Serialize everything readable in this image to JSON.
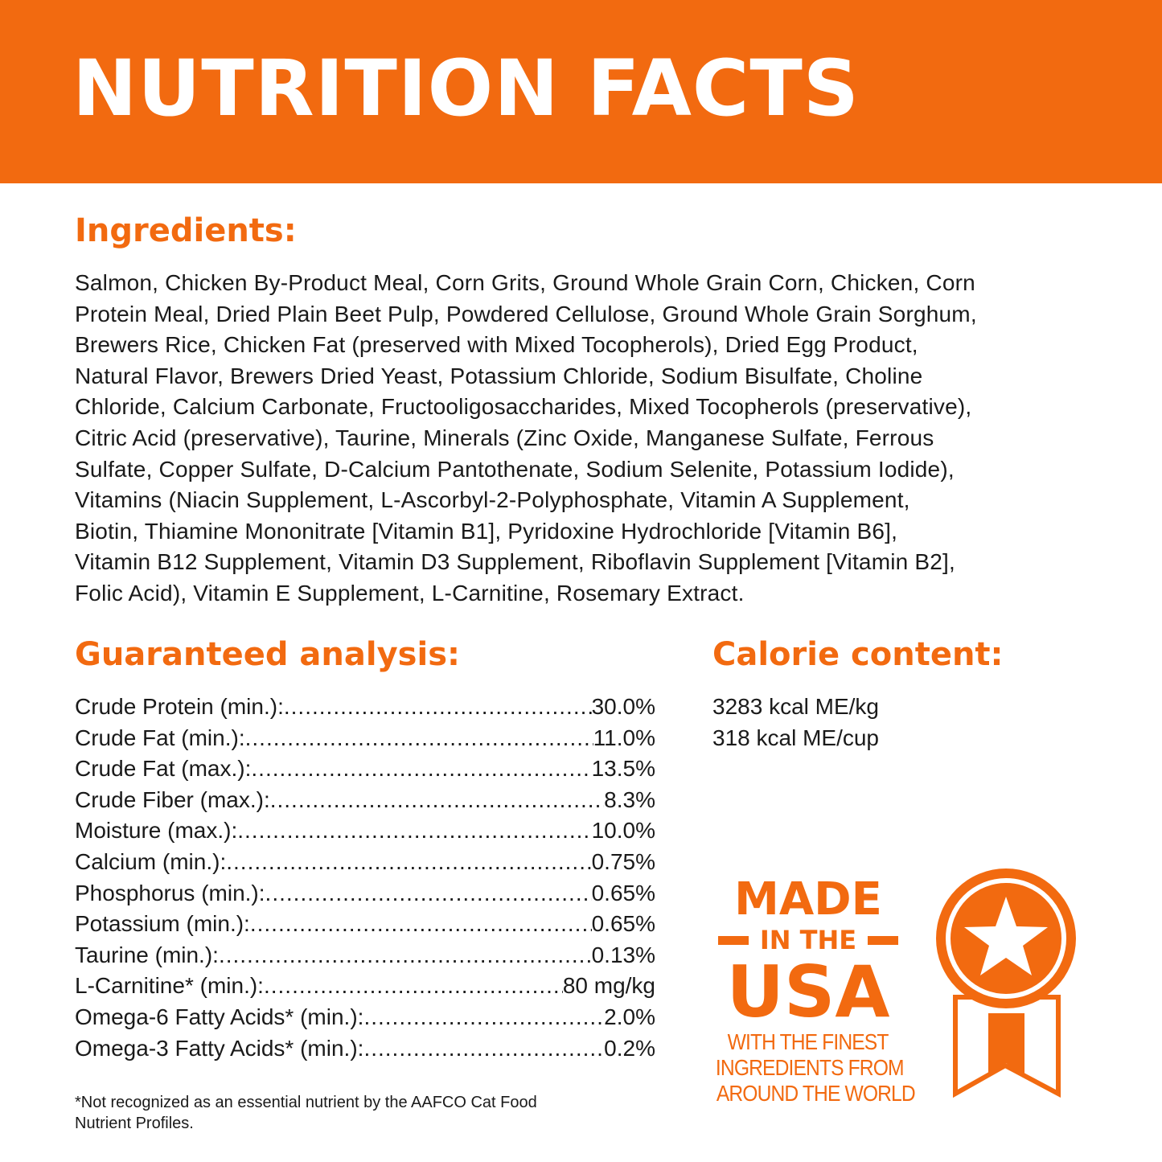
{
  "header": {
    "title": "NUTRITION FACTS",
    "color": "#f26a10"
  },
  "ingredients": {
    "heading": "Ingredients:",
    "lines": [
      "Salmon, Chicken By-Product Meal, Corn Grits, Ground Whole Grain Corn, Chicken, Corn",
      "Protein Meal, Dried Plain Beet Pulp, Powdered Cellulose, Ground Whole Grain Sorghum,",
      "Brewers Rice, Chicken Fat (preserved with Mixed Tocopherols), Dried Egg Product,",
      "Natural Flavor, Brewers Dried Yeast, Potassium Chloride, Sodium Bisulfate, Choline",
      "Chloride, Calcium Carbonate, Fructooligosaccharides, Mixed Tocopherols (preservative),",
      "Citric Acid (preservative), Taurine, Minerals (Zinc Oxide, Manganese Sulfate, Ferrous",
      "Sulfate, Copper Sulfate, D-Calcium Pantothenate, Sodium Selenite, Potassium Iodide),",
      "Vitamins (Niacin Supplement, L-Ascorbyl-2-Polyphosphate, Vitamin A Supplement,",
      "Biotin, Thiamine Mononitrate [Vitamin B1], Pyridoxine Hydrochloride [Vitamin B6],",
      "Vitamin B12 Supplement, Vitamin D3 Supplement, Riboflavin Supplement [Vitamin B2],",
      "Folic Acid), Vitamin E Supplement, L-Carnitine, Rosemary Extract."
    ]
  },
  "analysis": {
    "heading": "Guaranteed analysis:",
    "rows": [
      {
        "label": "Crude Protein (min.):",
        "value": "30.0%"
      },
      {
        "label": "Crude Fat (min.):",
        "value": "11.0%"
      },
      {
        "label": "Crude Fat (max.):",
        "value": "13.5%"
      },
      {
        "label": "Crude Fiber (max.):",
        "value": " 8.3%"
      },
      {
        "label": "Moisture (max.):",
        "value": "10.0%"
      },
      {
        "label": "Calcium (min.):",
        "value": "0.75%"
      },
      {
        "label": "Phosphorus (min.):",
        "value": "0.65%"
      },
      {
        "label": "Potassium (min.):",
        "value": "0.65%"
      },
      {
        "label": "Taurine (min.):",
        "value": "0.13%"
      },
      {
        "label": "L-Carnitine* (min.):",
        "value": "80 mg/kg"
      },
      {
        "label": "Omega-6 Fatty Acids* (min.):",
        "value": "2.0%"
      },
      {
        "label": "Omega-3 Fatty Acids* (min.):",
        "value": "0.2%"
      }
    ]
  },
  "calorie": {
    "heading": "Calorie content:",
    "lines": [
      "3283 kcal ME/kg",
      "318 kcal ME/cup"
    ]
  },
  "footnote": {
    "lines": [
      "*Not recognized as an essential nutrient by the AAFCO Cat Food",
      "Nutrient Profiles."
    ]
  },
  "badge": {
    "line1": "MADE",
    "line2": "IN THE",
    "line3": "USA",
    "sub": [
      "WITH THE FINEST",
      "INGREDIENTS FROM",
      "AROUND THE WORLD"
    ],
    "icon": "star-ribbon-medal-icon"
  }
}
